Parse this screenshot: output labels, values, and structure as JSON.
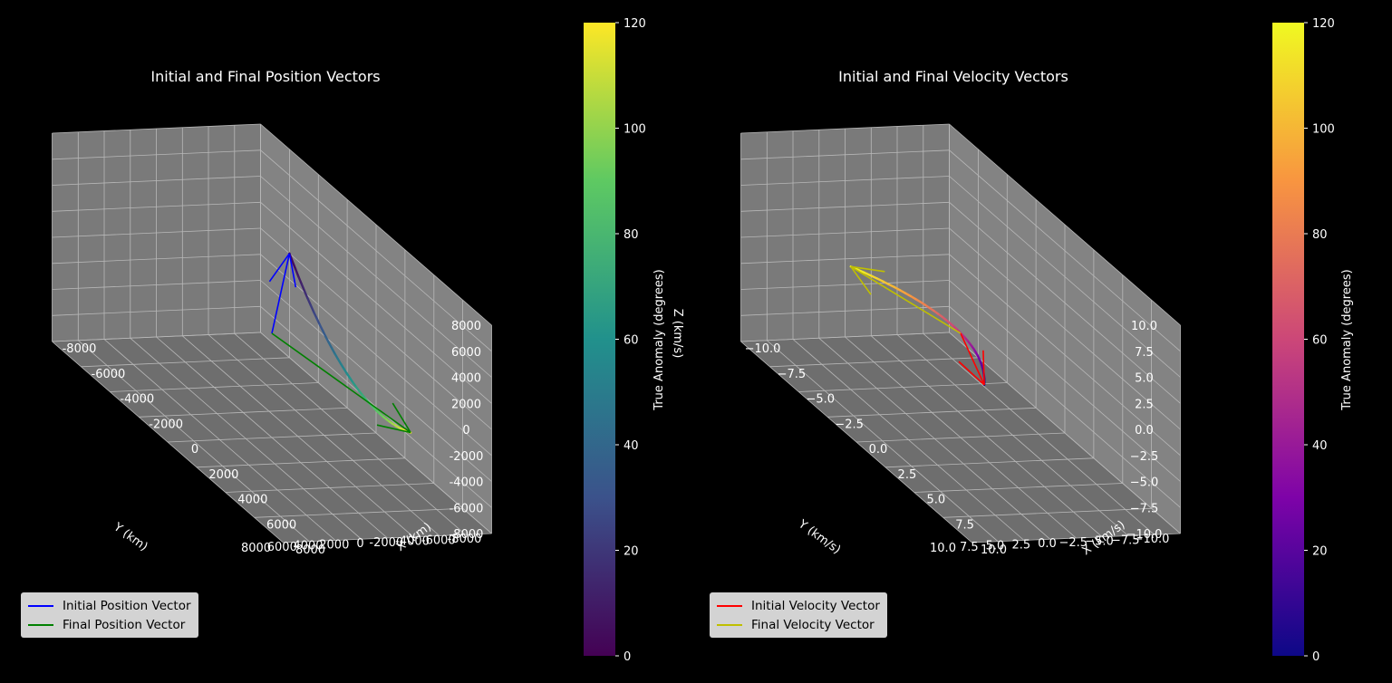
{
  "chart_data": [
    {
      "type": "3d-line",
      "title": "Initial and Final Position Vectors",
      "xlabel": "X (km)",
      "ylabel": "Y (km)",
      "zlabel": "",
      "xlim": [
        -8000,
        8000
      ],
      "ylim": [
        -8000,
        8000
      ],
      "zlim": [
        -8000,
        8000
      ],
      "xticks": [
        "-8000",
        "-6000",
        "-4000",
        "-2000",
        "0",
        "2000",
        "4000",
        "6000",
        "8000"
      ],
      "yticks": [
        "-8000",
        "-6000",
        "-4000",
        "-2000",
        "0",
        "2000",
        "4000",
        "6000",
        "8000"
      ],
      "zticks": [
        "-8000",
        "-6000",
        "-4000",
        "-2000",
        "0",
        "2000",
        "4000",
        "6000",
        "8000"
      ],
      "grid": true,
      "legend_position": "lower-left",
      "series": [
        {
          "name": "Initial Position Vector",
          "color": "#0000ff",
          "vector": [
            -6000,
            -8000,
            0
          ]
        },
        {
          "name": "Final Position Vector",
          "color": "#008000",
          "vector": [
            6000,
            -4000,
            -2000
          ]
        }
      ],
      "trajectory": {
        "colormap": "viridis",
        "anomaly_range": [
          0,
          120
        ]
      },
      "colorbar": {
        "label": "True Anomaly (degrees)",
        "ticks": [
          "0",
          "20",
          "40",
          "60",
          "80",
          "100",
          "120"
        ],
        "colormap": "viridis"
      }
    },
    {
      "type": "3d-line",
      "title": "Initial and Final Velocity Vectors",
      "xlabel": "X (km/s)",
      "ylabel": "Y (km/s)",
      "zlabel": "Z (km/s)",
      "xlim": [
        -10,
        10
      ],
      "ylim": [
        -10,
        10
      ],
      "zlim": [
        -10,
        10
      ],
      "xticks": [
        "−10.0",
        "−7.5",
        "−5.0",
        "−2.5",
        "0.0",
        "2.5",
        "5.0",
        "7.5",
        "10.0"
      ],
      "yticks": [
        "−10.0",
        "−7.5",
        "−5.0",
        "−2.5",
        "0.0",
        "2.5",
        "5.0",
        "7.5",
        "10.0"
      ],
      "zticks": [
        "−10.0",
        "−7.5",
        "−5.0",
        "−2.5",
        "0.0",
        "2.5",
        "5.0",
        "7.5",
        "10.0"
      ],
      "grid": true,
      "legend_position": "lower-left",
      "series": [
        {
          "name": "Initial Velocity Vector",
          "color": "#ff0000",
          "vector": [
            2.5,
            0.5,
            -2.5
          ]
        },
        {
          "name": "Final Velocity Vector",
          "color": "#bfbf00",
          "vector": [
            -5,
            5,
            1.8
          ]
        }
      ],
      "trajectory": {
        "colormap": "plasma",
        "anomaly_range": [
          0,
          120
        ]
      },
      "colorbar": {
        "label": "True Anomaly (degrees)",
        "ticks": [
          "0",
          "20",
          "40",
          "60",
          "80",
          "100",
          "120"
        ],
        "colormap": "plasma"
      }
    }
  ]
}
